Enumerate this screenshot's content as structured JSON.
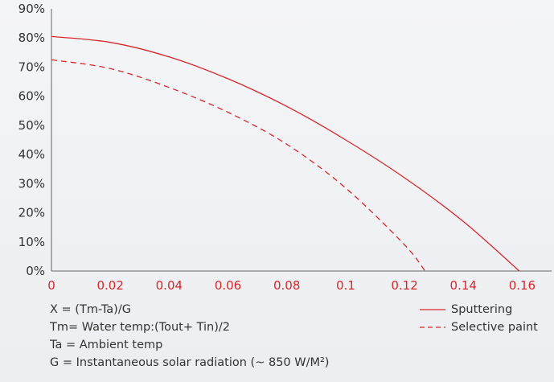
{
  "chart_data": {
    "type": "line",
    "title": "",
    "xlabel": "",
    "ylabel": "",
    "xlim": [
      0,
      0.17
    ],
    "ylim": [
      0,
      90
    ],
    "x_ticks": [
      "0",
      "0.02",
      "0.04",
      "0.06",
      "0.08",
      "0.1",
      "0.12",
      "0.14",
      "0.16"
    ],
    "x_tick_values": [
      0,
      0.02,
      0.04,
      0.06,
      0.08,
      0.1,
      0.12,
      0.14,
      0.16
    ],
    "y_ticks": [
      "0%",
      "10%",
      "20%",
      "30%",
      "40%",
      "50%",
      "60%",
      "70%",
      "80%",
      "90%"
    ],
    "y_tick_values": [
      0,
      10,
      20,
      30,
      40,
      50,
      60,
      70,
      80,
      90
    ],
    "grid": false,
    "legend_position": "bottom-right",
    "series": [
      {
        "name": "Sputtering",
        "style": "solid",
        "color": "#d9262b",
        "x": [
          0,
          0.02,
          0.04,
          0.06,
          0.08,
          0.1,
          0.12,
          0.14,
          0.159
        ],
        "y": [
          80.5,
          78.5,
          73.5,
          66,
          56.5,
          45,
          32,
          17,
          0
        ]
      },
      {
        "name": "Selective paint",
        "style": "dashed",
        "color": "#d9262b",
        "x": [
          0,
          0.02,
          0.04,
          0.06,
          0.08,
          0.1,
          0.12,
          0.127
        ],
        "y": [
          72.5,
          69.5,
          63,
          54.5,
          43.5,
          28.5,
          9,
          0
        ]
      }
    ]
  },
  "notes": [
    "X  = (Tm-Ta)/G",
    "Tm= Water temp:(Tout+ Tin)/2",
    "Ta  = Ambient temp",
    "G  = Instantaneous solar radiation (~ 850 W/M²)"
  ],
  "colors": {
    "accent": "#d9262b",
    "text": "#333333",
    "axis": "#666666"
  }
}
